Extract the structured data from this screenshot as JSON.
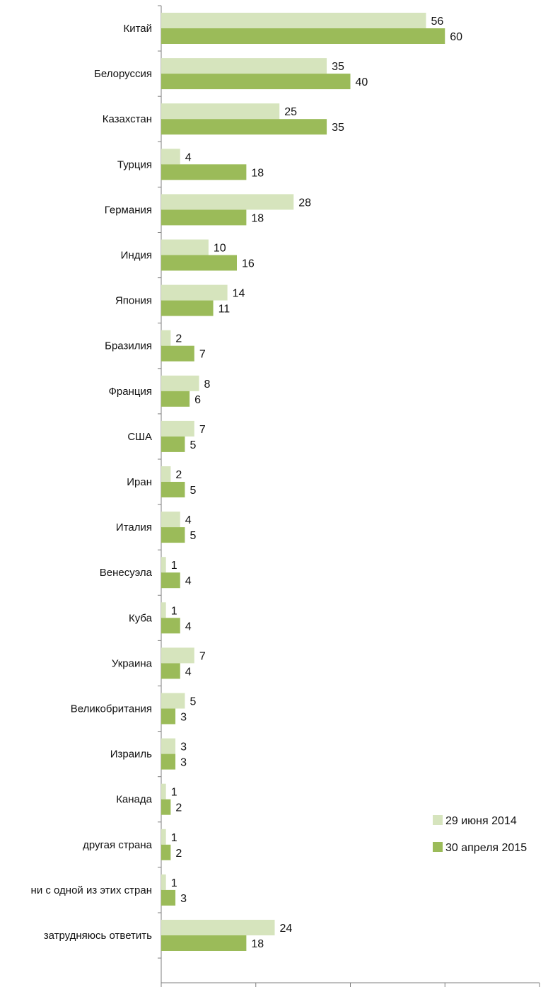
{
  "chart_data": {
    "type": "bar",
    "orientation": "horizontal",
    "categories": [
      "Китай",
      "Белоруссия",
      "Казахстан",
      "Турция",
      "Германия",
      "Индия",
      "Япония",
      "Бразилия",
      "Франция",
      "США",
      "Иран",
      "Италия",
      "Венесуэла",
      "Куба",
      "Украина",
      "Великобритания",
      "Израиль",
      "Канада",
      "другая страна",
      "ни с одной из этих стран",
      "затрудняюсь ответить"
    ],
    "series": [
      {
        "name": "29 июня 2014",
        "color": "#d6e4bd",
        "values": [
          56,
          35,
          25,
          4,
          28,
          10,
          14,
          2,
          8,
          7,
          2,
          4,
          1,
          1,
          7,
          5,
          3,
          1,
          1,
          1,
          24
        ]
      },
      {
        "name": "30 апреля 2015",
        "color": "#9bbb59",
        "values": [
          60,
          40,
          35,
          18,
          18,
          16,
          11,
          7,
          6,
          5,
          5,
          5,
          4,
          4,
          4,
          3,
          3,
          2,
          2,
          3,
          18
        ]
      }
    ],
    "xlim": [
      0,
      80
    ],
    "xticks": [
      "0",
      "20",
      "40",
      "60",
      "80"
    ],
    "legend": "bottom-right",
    "grid": false
  }
}
